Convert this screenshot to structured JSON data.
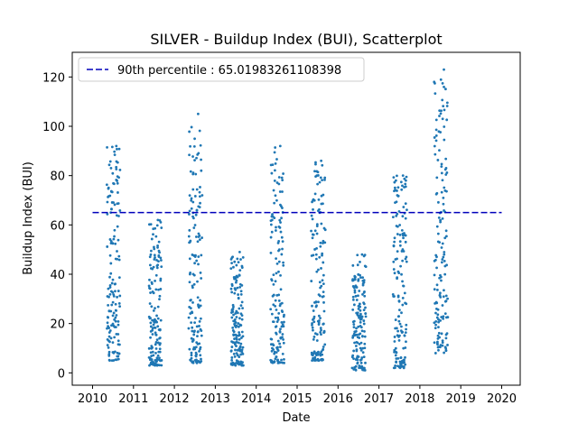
{
  "chart_data": {
    "type": "scatter",
    "title": "SILVER - Buildup Index (BUI), Scatterplot",
    "xlabel": "Date",
    "ylabel": "Buildup Index (BUI)",
    "xlim": [
      2010,
      2020
    ],
    "ylim": [
      -5,
      130
    ],
    "x_ticks": [
      "2010",
      "2011",
      "2012",
      "2013",
      "2014",
      "2015",
      "2016",
      "2017",
      "2018",
      "2019",
      "2020"
    ],
    "y_ticks": [
      "0",
      "20",
      "40",
      "60",
      "80",
      "100",
      "120"
    ],
    "grid": false,
    "legend": {
      "placement": "top-left",
      "entries": [
        "90th percentile : 65.01983261108398"
      ]
    },
    "reference_line": {
      "label": "90th percentile : 65.01983261108398",
      "y": 65.01983261108398,
      "color": "#0000bb",
      "style": "dashed"
    },
    "marker_color": "#1f77b4",
    "clusters": [
      {
        "season": "2010",
        "x_start": 2010.35,
        "x_end": 2010.67,
        "y_min": 5,
        "y_max": 92
      },
      {
        "season": "2011",
        "x_start": 2011.38,
        "x_end": 2011.68,
        "y_min": 3,
        "y_max": 62
      },
      {
        "season": "2012",
        "x_start": 2012.35,
        "x_end": 2012.67,
        "y_min": 4,
        "y_max": 105
      },
      {
        "season": "2013",
        "x_start": 2013.38,
        "x_end": 2013.68,
        "y_min": 3,
        "y_max": 49
      },
      {
        "season": "2014",
        "x_start": 2014.35,
        "x_end": 2014.68,
        "y_min": 4,
        "y_max": 92
      },
      {
        "season": "2015",
        "x_start": 2015.35,
        "x_end": 2015.68,
        "y_min": 5,
        "y_max": 86
      },
      {
        "season": "2016",
        "x_start": 2016.35,
        "x_end": 2016.68,
        "y_min": 1,
        "y_max": 48
      },
      {
        "season": "2017",
        "x_start": 2017.35,
        "x_end": 2017.68,
        "y_min": 2,
        "y_max": 80
      },
      {
        "season": "2018",
        "x_start": 2018.35,
        "x_end": 2018.68,
        "y_min": 8,
        "y_max": 123
      }
    ]
  }
}
